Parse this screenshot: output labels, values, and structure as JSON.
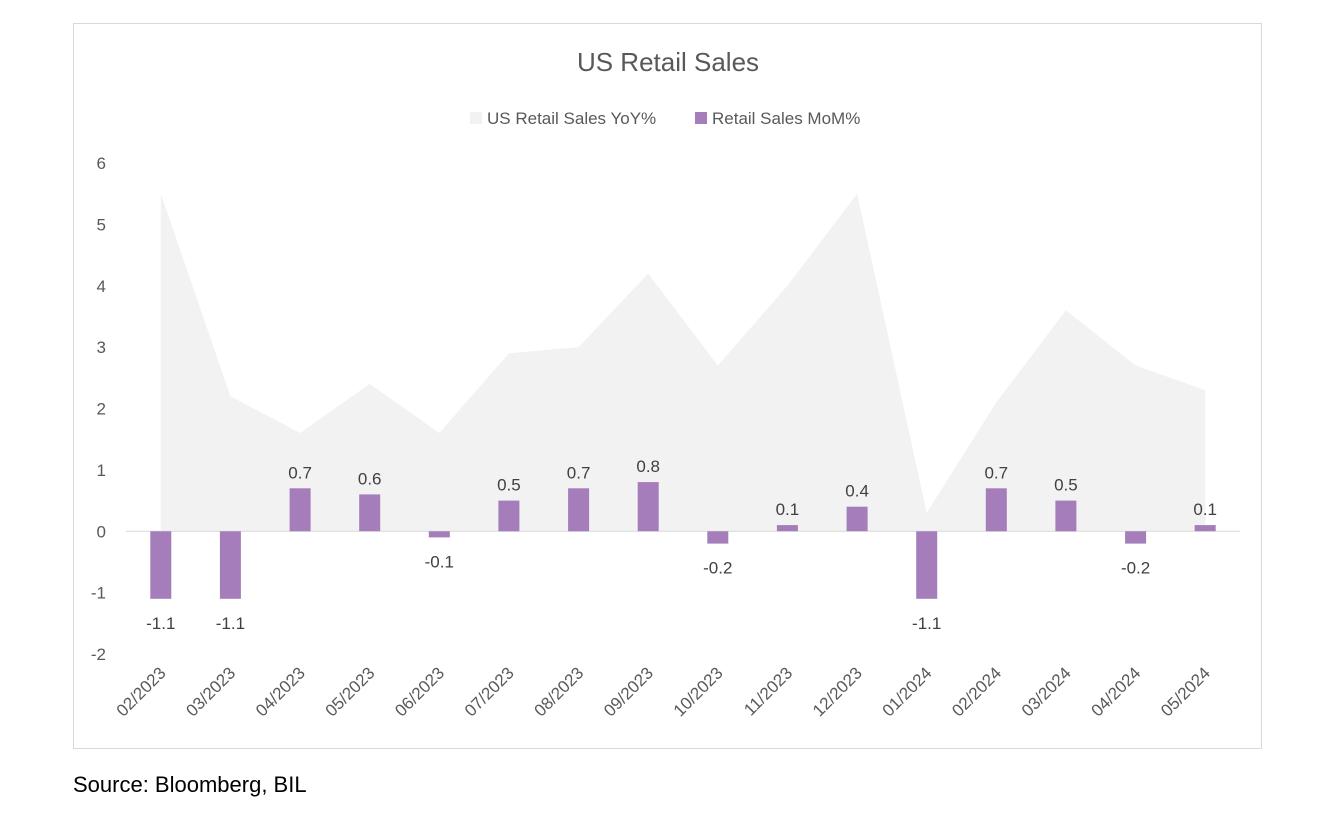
{
  "footer": {
    "source": "Source: Bloomberg, BIL"
  },
  "chart_data": {
    "type": "bar",
    "title": "US Retail Sales",
    "xlabel": "",
    "ylabel": "",
    "ylim": [
      -2,
      6
    ],
    "yticks": [
      -2,
      -1,
      0,
      1,
      2,
      3,
      4,
      5,
      6
    ],
    "grid": false,
    "legend_position": "top",
    "categories": [
      "02/2023",
      "03/2023",
      "04/2023",
      "05/2023",
      "06/2023",
      "07/2023",
      "08/2023",
      "09/2023",
      "10/2023",
      "11/2023",
      "12/2023",
      "01/2024",
      "02/2024",
      "03/2024",
      "04/2024",
      "05/2024"
    ],
    "series": [
      {
        "name": "US Retail Sales YoY%",
        "type": "area",
        "color": "#f2f2f2",
        "values": [
          5.5,
          2.2,
          1.6,
          2.4,
          1.6,
          2.9,
          3.0,
          4.2,
          2.7,
          4.0,
          5.5,
          0.3,
          2.1,
          3.6,
          2.7,
          2.3
        ]
      },
      {
        "name": "Retail Sales MoM%",
        "type": "bar",
        "color": "#a47dba",
        "values": [
          -1.1,
          -1.1,
          0.7,
          0.6,
          -0.1,
          0.5,
          0.7,
          0.8,
          -0.2,
          0.1,
          0.4,
          -1.1,
          0.7,
          0.5,
          -0.2,
          0.1
        ],
        "data_labels": [
          "-1.1",
          "-1.1",
          "0.7",
          "0.6",
          "-0.1",
          "0.5",
          "0.7",
          "0.8",
          "-0.2",
          "0.1",
          "0.4",
          "-1.1",
          "0.7",
          "0.5",
          "-0.2",
          "0.1"
        ]
      }
    ]
  }
}
